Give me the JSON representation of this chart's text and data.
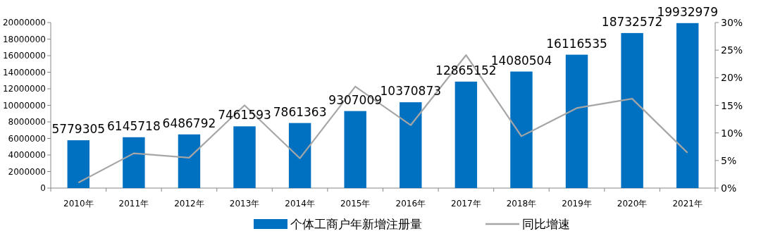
{
  "chart_data": {
    "type": "bar",
    "categories": [
      "2010年",
      "2011年",
      "2012年",
      "2013年",
      "2014年",
      "2015年",
      "2016年",
      "2017年",
      "2018年",
      "2019年",
      "2020年",
      "2021年"
    ],
    "series": [
      {
        "name": "个体工商户年新增注册量",
        "color": "#0070c0",
        "values": [
          5779305,
          6145718,
          6486792,
          7461593,
          7861363,
          9307009,
          10370873,
          12865152,
          14080504,
          16116535,
          18732572,
          19932979
        ],
        "value_labels": [
          "5779305",
          "6145718",
          "6486792",
          "7461593",
          "7861363",
          "9307009",
          "10370873",
          "12865152",
          "14080504",
          "16116535",
          "18732572",
          "19932979"
        ]
      },
      {
        "name": "同比增速",
        "color": "#a6a6a6",
        "type": "line",
        "axis": "y2",
        "values": [
          1.0,
          6.3,
          5.5,
          15.0,
          5.4,
          18.4,
          11.4,
          24.1,
          9.4,
          14.5,
          16.2,
          6.4
        ]
      }
    ],
    "ylim": [
      0,
      20000000
    ],
    "yticks": [
      0,
      2000000,
      4000000,
      6000000,
      8000000,
      10000000,
      12000000,
      14000000,
      16000000,
      18000000,
      20000000
    ],
    "y2lim": [
      0,
      30
    ],
    "y2ticks": [
      {
        "value": 0,
        "label": "0%"
      },
      {
        "value": 5,
        "label": "5%"
      },
      {
        "value": 10,
        "label": "10%"
      },
      {
        "value": 15,
        "label": "15%"
      },
      {
        "value": 20,
        "label": "20%"
      },
      {
        "value": 25,
        "label": "25%"
      },
      {
        "value": 30,
        "label": "30%"
      }
    ],
    "legend": "bottom",
    "grid": false,
    "marker": "none",
    "line_style": "solid"
  }
}
